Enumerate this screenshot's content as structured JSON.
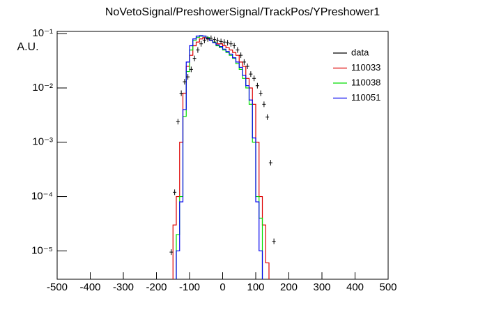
{
  "chart_data": {
    "type": "histogram",
    "title": "NoVetoSignal/PreshowerSignal/TrackPos/YPreshower1",
    "ylabel": "A.U.",
    "log_y": true,
    "xlim": [
      -500,
      500
    ],
    "xticks": [
      -500,
      -400,
      -300,
      -200,
      -100,
      0,
      100,
      200,
      300,
      400,
      500
    ],
    "ylim": [
      3e-06,
      0.11
    ],
    "yticks": [
      {
        "value": 1e-05,
        "label": "10⁻⁵"
      },
      {
        "value": 0.0001,
        "label": "10⁻⁴"
      },
      {
        "value": 0.001,
        "label": "10⁻³"
      },
      {
        "value": 0.01,
        "label": "10⁻²"
      },
      {
        "value": 0.1,
        "label": "10⁻¹"
      }
    ],
    "bins": [
      -160,
      -150,
      -140,
      -130,
      -120,
      -110,
      -100,
      -90,
      -80,
      -70,
      -60,
      -50,
      -40,
      -30,
      -20,
      -10,
      0,
      10,
      20,
      30,
      40,
      50,
      60,
      70,
      80,
      90,
      100,
      110,
      120,
      130,
      140,
      150,
      160,
      170
    ],
    "series": [
      {
        "name": "data",
        "color": "#000000",
        "draw": "points",
        "values": [
          9.5e-06,
          0.00012,
          0.0024,
          0.008,
          0.013,
          0.016,
          0.022,
          0.035,
          0.05,
          0.065,
          0.075,
          0.08,
          0.082,
          0.078,
          0.075,
          0.072,
          0.07,
          0.068,
          0.065,
          0.06,
          0.05,
          0.04,
          0.03,
          0.025,
          0.018,
          0.015,
          0.011,
          0.008,
          0.005,
          0.0029,
          0.00042,
          1.5e-05,
          null
        ]
      },
      {
        "name": "110033",
        "color": "#dd0000",
        "draw": "step",
        "values": [
          null,
          3e-05,
          0.0001,
          0.001,
          0.008,
          0.025,
          0.04,
          0.06,
          0.07,
          0.08,
          0.085,
          0.08,
          0.075,
          0.07,
          0.065,
          0.065,
          0.06,
          0.055,
          0.05,
          0.045,
          0.04,
          0.03,
          0.025,
          0.015,
          0.01,
          0.005,
          0.001,
          0.0001,
          3e-05,
          6e-06,
          null,
          null,
          null
        ]
      },
      {
        "name": "110038",
        "color": "#00dd00",
        "draw": "step",
        "values": [
          null,
          null,
          2e-05,
          0.0001,
          0.003,
          0.02,
          0.05,
          0.075,
          0.085,
          0.09,
          0.09,
          0.085,
          0.075,
          0.07,
          0.06,
          0.055,
          0.05,
          0.045,
          0.04,
          0.035,
          0.028,
          0.022,
          0.015,
          0.01,
          0.005,
          0.001,
          0.0001,
          4e-05,
          null,
          null,
          null,
          null,
          null
        ]
      },
      {
        "name": "110051",
        "color": "#0000ee",
        "draw": "step",
        "values": [
          null,
          null,
          1e-05,
          8e-05,
          0.004,
          0.03,
          0.06,
          0.08,
          0.09,
          0.092,
          0.09,
          0.082,
          0.075,
          0.068,
          0.062,
          0.058,
          0.052,
          0.047,
          0.042,
          0.036,
          0.03,
          0.024,
          0.017,
          0.011,
          0.006,
          0.0012,
          8e-05,
          1e-05,
          null,
          null,
          null,
          null,
          null
        ]
      }
    ]
  }
}
